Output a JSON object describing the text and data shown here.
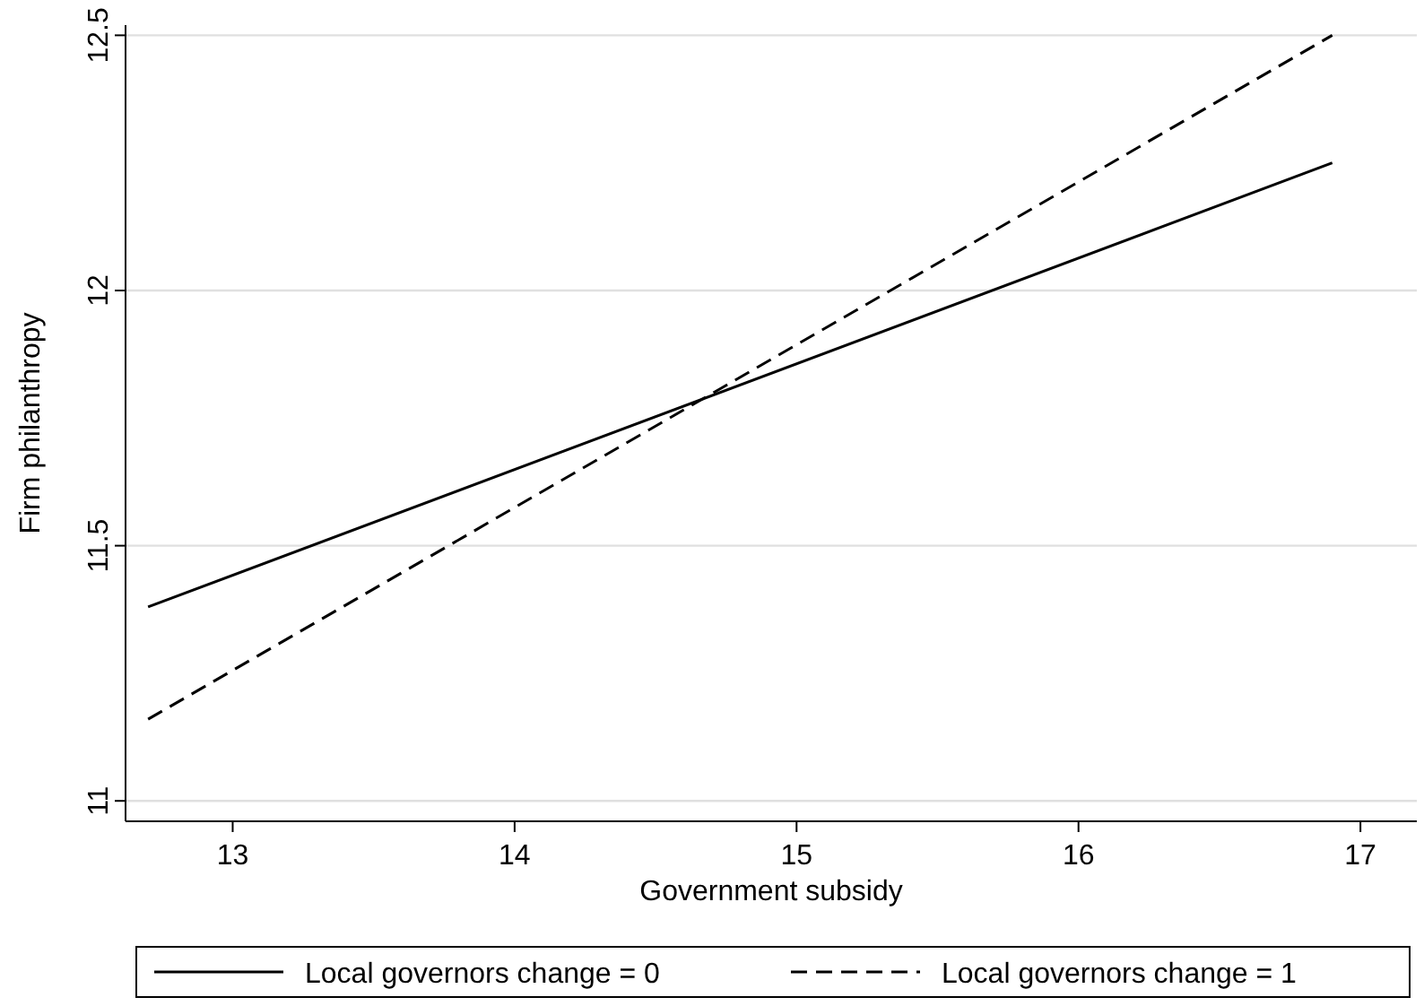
{
  "chart_data": {
    "type": "line",
    "xlabel": "Government subsidy",
    "ylabel": "Firm philanthropy",
    "x": [
      12.7,
      16.9
    ],
    "series": [
      {
        "name": "Local governors change = 0",
        "color": "#000000",
        "values": [
          11.38,
          12.25
        ],
        "line_style": "solid"
      },
      {
        "name": "Local governors change = 1",
        "color": "#000000",
        "values": [
          11.16,
          12.5
        ],
        "line_style": "dashed"
      }
    ],
    "xlim": [
      12.62,
      17.2
    ],
    "xticks": [
      13,
      14,
      15,
      16,
      17
    ],
    "ylim": [
      10.96,
      12.52
    ],
    "yticks": [
      11,
      11.5,
      12,
      12.5
    ],
    "grid": "y",
    "legend": "bottom"
  }
}
